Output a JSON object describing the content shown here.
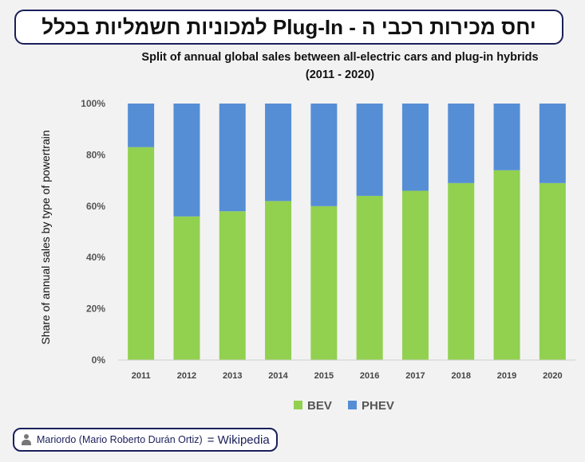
{
  "header": {
    "title": "יחס מכירות רכבי ה - Plug-In למכוניות חשמליות בכלל"
  },
  "chart_data": {
    "type": "bar",
    "stacked": true,
    "title": "Split of annual global sales between all-electric cars and plug-in hybrids",
    "subtitle": "(2011 - 2020)",
    "xlabel": "",
    "ylabel": "Share of annual sales by type of powertrain",
    "categories": [
      "2011",
      "2012",
      "2013",
      "2014",
      "2015",
      "2016",
      "2017",
      "2018",
      "2019",
      "2020"
    ],
    "series": [
      {
        "name": "BEV",
        "color": "#92d050",
        "values": [
          83,
          56,
          58,
          62,
          60,
          64,
          66,
          69,
          74,
          69
        ]
      },
      {
        "name": "PHEV",
        "color": "#558ed5",
        "values": [
          17,
          44,
          42,
          38,
          40,
          36,
          34,
          31,
          26,
          31
        ]
      }
    ],
    "ylim": [
      0,
      100
    ],
    "yticks": [
      "0%",
      "20%",
      "40%",
      "60%",
      "80%",
      "100%"
    ],
    "legend": "bottom",
    "grid": false
  },
  "credit": {
    "author": "Mariordo (Mario Roberto Durán Ortiz)",
    "source": "= Wikipedia"
  }
}
